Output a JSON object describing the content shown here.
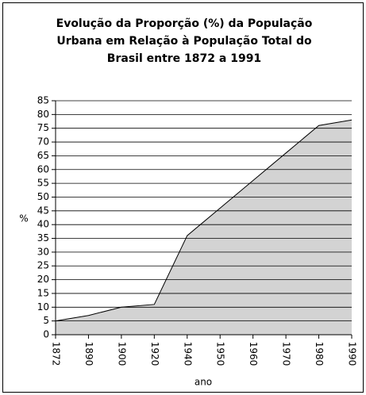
{
  "chart_data": {
    "type": "area",
    "title": [
      "Evolução da Proporção (%) da População",
      "Urbana em Relação à População Total do",
      "Brasil entre 1872 a 1991"
    ],
    "categories": [
      "1872",
      "1890",
      "1900",
      "1920",
      "1940",
      "1950",
      "1960",
      "1970",
      "1980",
      "1990"
    ],
    "values": [
      5,
      7,
      10,
      11,
      36,
      46,
      56,
      66,
      76,
      78
    ],
    "color": "#d3d3d3",
    "ylabel": "%",
    "xlabel": "ano",
    "ylim": [
      0,
      85
    ],
    "yticks": [
      0,
      5,
      10,
      15,
      20,
      25,
      30,
      35,
      40,
      45,
      50,
      55,
      60,
      65,
      70,
      75,
      80,
      85
    ],
    "grid": true
  }
}
